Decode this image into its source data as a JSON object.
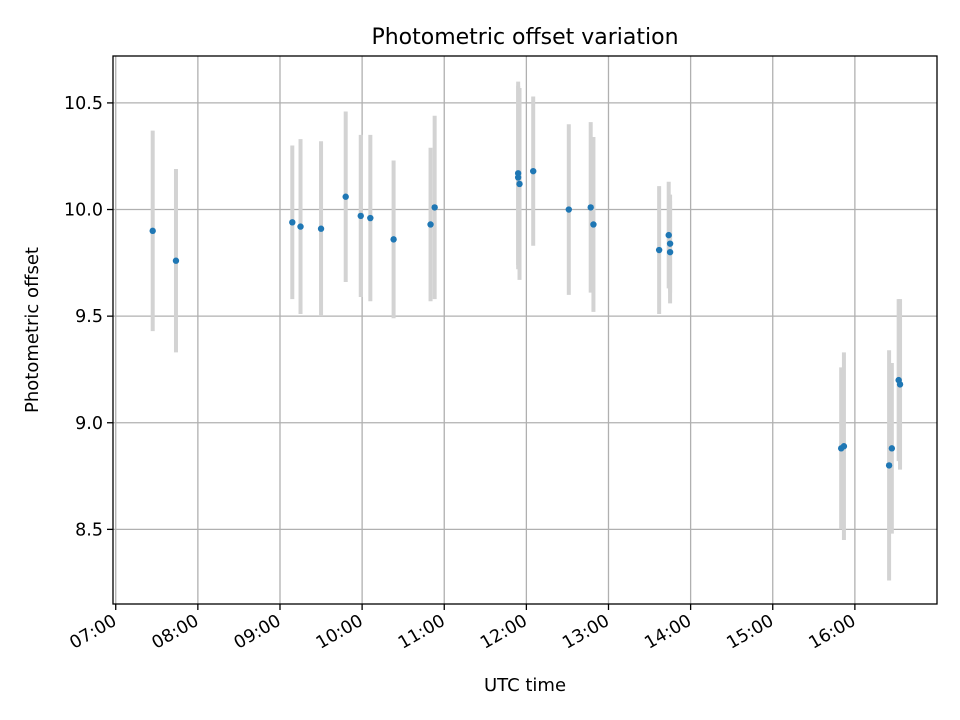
{
  "chart_data": {
    "type": "scatter",
    "title": "Photometric offset variation",
    "xlabel": "UTC time",
    "ylabel": "Photometric offset",
    "x_ticks": [
      "07:00",
      "08:00",
      "09:00",
      "10:00",
      "11:00",
      "12:00",
      "13:00",
      "14:00",
      "15:00",
      "16:00"
    ],
    "y_ticks": [
      "8.5",
      "9.0",
      "9.5",
      "10.0",
      "10.5"
    ],
    "xlim": [
      "06:58",
      "17:00"
    ],
    "ylim": [
      8.15,
      10.72
    ],
    "grid": true,
    "series": [
      {
        "color": "#1f77b4",
        "errorbar_color": "#d3d3d3",
        "points": [
          {
            "x": "07:27",
            "y": 9.9,
            "err": 0.47
          },
          {
            "x": "07:44",
            "y": 9.76,
            "err": 0.43
          },
          {
            "x": "09:09",
            "y": 9.94,
            "err": 0.36
          },
          {
            "x": "09:15",
            "y": 9.92,
            "err": 0.41
          },
          {
            "x": "09:30",
            "y": 9.91,
            "err": 0.41
          },
          {
            "x": "09:48",
            "y": 10.06,
            "err": 0.4
          },
          {
            "x": "09:59",
            "y": 9.97,
            "err": 0.38
          },
          {
            "x": "10:06",
            "y": 9.96,
            "err": 0.39
          },
          {
            "x": "10:23",
            "y": 9.86,
            "err": 0.37
          },
          {
            "x": "10:50",
            "y": 9.93,
            "err": 0.36
          },
          {
            "x": "10:53",
            "y": 10.01,
            "err": 0.43
          },
          {
            "x": "11:54",
            "y": 10.17,
            "err": 0.43
          },
          {
            "x": "11:54",
            "y": 10.15,
            "err": 0.43
          },
          {
            "x": "11:55",
            "y": 10.12,
            "err": 0.45
          },
          {
            "x": "12:05",
            "y": 10.18,
            "err": 0.35
          },
          {
            "x": "12:31",
            "y": 10.0,
            "err": 0.4
          },
          {
            "x": "12:47",
            "y": 10.01,
            "err": 0.4
          },
          {
            "x": "12:49",
            "y": 9.93,
            "err": 0.41
          },
          {
            "x": "13:37",
            "y": 9.81,
            "err": 0.3
          },
          {
            "x": "13:44",
            "y": 9.88,
            "err": 0.25
          },
          {
            "x": "13:45",
            "y": 9.84,
            "err": 0.23
          },
          {
            "x": "13:45",
            "y": 9.8,
            "err": 0.24
          },
          {
            "x": "15:50",
            "y": 8.88,
            "err": 0.38
          },
          {
            "x": "15:52",
            "y": 8.89,
            "err": 0.44
          },
          {
            "x": "16:25",
            "y": 8.8,
            "err": 0.54
          },
          {
            "x": "16:27",
            "y": 8.88,
            "err": 0.4
          },
          {
            "x": "16:32",
            "y": 9.2,
            "err": 0.38
          },
          {
            "x": "16:33",
            "y": 9.18,
            "err": 0.4
          }
        ]
      }
    ]
  }
}
